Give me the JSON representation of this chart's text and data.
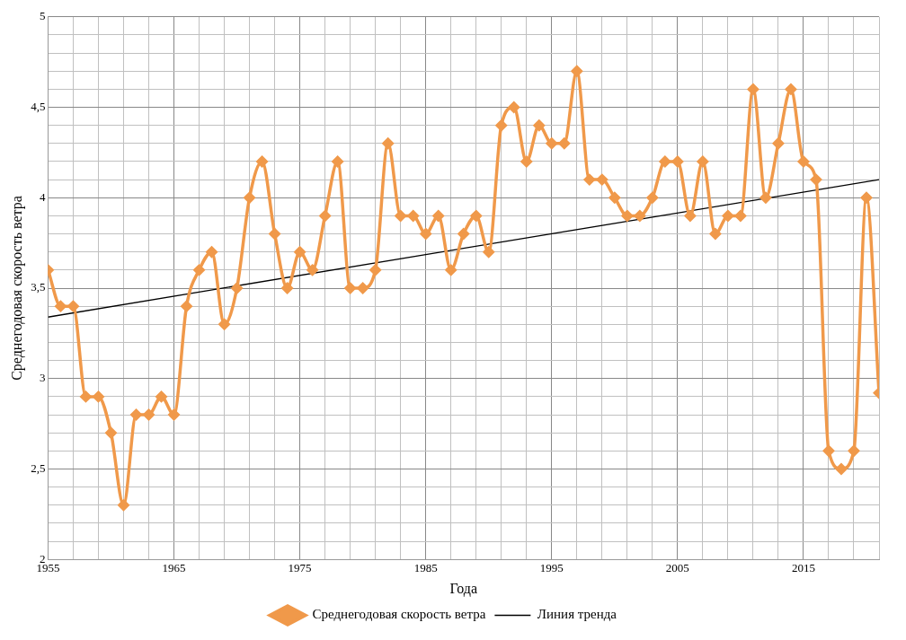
{
  "chart_data": {
    "type": "line",
    "xlabel": "Года",
    "ylabel": "Среднегодовая скорость ветра",
    "x": [
      1955,
      1956,
      1957,
      1958,
      1959,
      1960,
      1961,
      1962,
      1963,
      1964,
      1965,
      1966,
      1967,
      1968,
      1969,
      1970,
      1971,
      1972,
      1973,
      1974,
      1975,
      1976,
      1977,
      1978,
      1979,
      1980,
      1981,
      1982,
      1983,
      1984,
      1985,
      1986,
      1987,
      1988,
      1989,
      1990,
      1991,
      1992,
      1993,
      1994,
      1995,
      1996,
      1997,
      1998,
      1999,
      2000,
      2001,
      2002,
      2003,
      2004,
      2005,
      2006,
      2007,
      2008,
      2009,
      2010,
      2011,
      2012,
      2013,
      2014,
      2015,
      2016,
      2017,
      2018,
      2019,
      2020,
      2021
    ],
    "series": [
      {
        "name": "Среднегодовая скорость ветра",
        "color": "#f0994a",
        "marker": "diamond",
        "values": [
          3.6,
          3.4,
          3.4,
          2.9,
          2.9,
          2.7,
          2.3,
          2.8,
          2.8,
          2.9,
          2.8,
          3.4,
          3.6,
          3.7,
          3.3,
          3.5,
          4.0,
          4.2,
          3.8,
          3.5,
          3.7,
          3.6,
          3.9,
          4.2,
          3.5,
          3.5,
          3.6,
          4.3,
          3.9,
          3.9,
          3.8,
          3.9,
          3.6,
          3.8,
          3.9,
          3.7,
          4.4,
          4.5,
          4.2,
          4.4,
          4.3,
          4.3,
          4.7,
          4.1,
          4.1,
          4.0,
          3.9,
          3.9,
          4.0,
          4.2,
          4.2,
          3.9,
          4.2,
          3.8,
          3.9,
          3.9,
          4.6,
          4.0,
          4.3,
          4.6,
          4.2,
          4.1,
          2.6,
          2.5,
          2.6,
          4.0,
          2.92
        ]
      },
      {
        "name": "Линия тренда",
        "type": "line",
        "color": "#000000",
        "marker": "none",
        "x": [
          1955,
          2021
        ],
        "values": [
          3.34,
          4.1
        ]
      }
    ],
    "xlim": [
      1955,
      2021
    ],
    "xticks": [
      1955,
      {
        "value": 1957,
        "label": null
      },
      {
        "value": 1959,
        "label": null
      },
      {
        "value": 1961,
        "label": null
      },
      {
        "value": 1963,
        "label": null
      },
      1965,
      {
        "value": 1967,
        "label": null
      },
      {
        "value": 1969,
        "label": null
      },
      {
        "value": 1971,
        "label": null
      },
      {
        "value": 1973,
        "label": null
      },
      1975,
      {
        "value": 1977,
        "label": null
      },
      {
        "value": 1979,
        "label": null
      },
      {
        "value": 1981,
        "label": null
      },
      {
        "value": 1983,
        "label": null
      },
      1985,
      {
        "value": 1987,
        "label": null
      },
      {
        "value": 1989,
        "label": null
      },
      {
        "value": 1991,
        "label": null
      },
      {
        "value": 1993,
        "label": null
      },
      1995,
      {
        "value": 1997,
        "label": null
      },
      {
        "value": 1999,
        "label": null
      },
      {
        "value": 2001,
        "label": null
      },
      {
        "value": 2003,
        "label": null
      },
      2005,
      {
        "value": 2007,
        "label": null
      },
      {
        "value": 2009,
        "label": null
      },
      {
        "value": 2011,
        "label": null
      },
      {
        "value": 2013,
        "label": null
      },
      2015,
      {
        "value": 2017,
        "label": null
      },
      {
        "value": 2019,
        "label": null
      },
      {
        "value": 2021,
        "label": null
      }
    ],
    "ylim": [
      2,
      5
    ],
    "yticks": [
      2,
      {
        "value": 2.1,
        "label": null
      },
      {
        "value": 2.2,
        "label": null
      },
      {
        "value": 2.3,
        "label": null
      },
      {
        "value": 2.4,
        "label": null
      },
      {
        "value": 2.5,
        "label": "2,5"
      },
      {
        "value": 2.6,
        "label": null
      },
      {
        "value": 2.7,
        "label": null
      },
      {
        "value": 2.8,
        "label": null
      },
      {
        "value": 2.9,
        "label": null
      },
      3,
      {
        "value": 3.1,
        "label": null
      },
      {
        "value": 3.2,
        "label": null
      },
      {
        "value": 3.3,
        "label": null
      },
      {
        "value": 3.4,
        "label": null
      },
      {
        "value": 3.5,
        "label": "3,5"
      },
      {
        "value": 3.6,
        "label": null
      },
      {
        "value": 3.7,
        "label": null
      },
      {
        "value": 3.8,
        "label": null
      },
      {
        "value": 3.9,
        "label": null
      },
      4,
      {
        "value": 4.1,
        "label": null
      },
      {
        "value": 4.2,
        "label": null
      },
      {
        "value": 4.3,
        "label": null
      },
      {
        "value": 4.4,
        "label": null
      },
      {
        "value": 4.5,
        "label": "4,5"
      },
      {
        "value": 4.6,
        "label": null
      },
      {
        "value": 4.7,
        "label": null
      },
      {
        "value": 4.8,
        "label": null
      },
      {
        "value": 4.9,
        "label": null
      },
      5
    ],
    "grid": true,
    "legend": "bottom"
  }
}
